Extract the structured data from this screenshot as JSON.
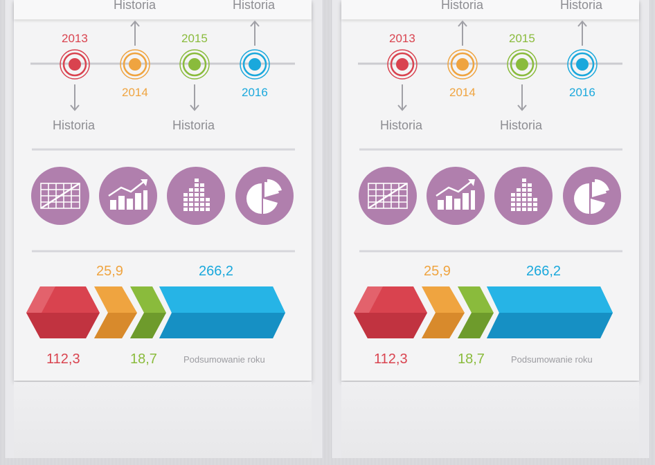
{
  "panels": [
    {
      "timeline": {
        "top_labels": [
          "Historia",
          "Historia"
        ],
        "bottom_labels": [
          "Historia",
          "Historia"
        ],
        "years": [
          "2013",
          "2014",
          "2015",
          "2016"
        ]
      },
      "icons": [
        "grid-chart-icon",
        "growth-bar-chart-icon",
        "bar-columns-icon",
        "pie-chart-icon"
      ],
      "values": {
        "v1": "112,3",
        "v2": "25,9",
        "v3": "18,7",
        "v4": "266,2",
        "summary": "Podsumowanie roku"
      }
    },
    {
      "timeline": {
        "top_labels": [
          "Historia",
          "Historia"
        ],
        "bottom_labels": [
          "Historia",
          "Historia"
        ],
        "years": [
          "2013",
          "2014",
          "2015",
          "2016"
        ]
      },
      "icons": [
        "grid-chart-icon",
        "growth-bar-chart-icon",
        "bar-columns-icon",
        "pie-chart-icon"
      ],
      "values": {
        "v1": "112,3",
        "v2": "25,9",
        "v3": "18,7",
        "v4": "266,2",
        "summary": "Podsumowanie roku"
      }
    }
  ],
  "colors": {
    "red": "#d9434f",
    "orange": "#efa440",
    "green": "#8abb3c",
    "blue": "#1aa8dc",
    "purple": "#b07fad",
    "gray": "#9a9aa0"
  }
}
